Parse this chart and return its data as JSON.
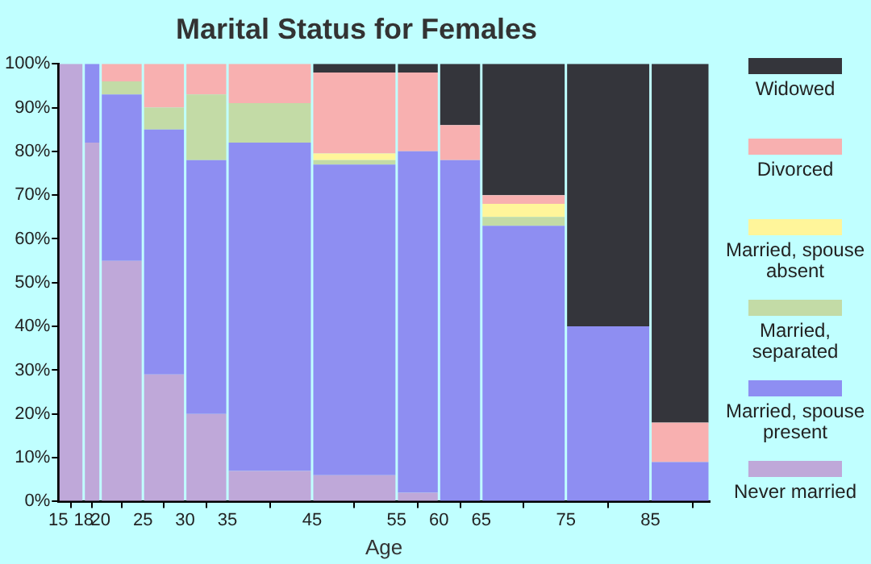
{
  "chart_data": {
    "type": "bar",
    "title": "Marital Status for Females",
    "xlabel": "Age",
    "stacked": true,
    "grid": false,
    "legend": "right",
    "x": [
      16.5,
      19,
      22.5,
      27.5,
      32.5,
      40,
      50,
      57.5,
      62.5,
      70,
      80,
      88.5
    ],
    "xlim": [
      15,
      92
    ],
    "xticks": [
      15,
      18,
      20,
      25,
      30,
      35,
      45,
      55,
      60,
      65,
      75,
      85
    ],
    "ylim": [
      0,
      100
    ],
    "yticks": [
      {
        "value": 0,
        "label": "0%"
      },
      {
        "value": 10,
        "label": "10%"
      },
      {
        "value": 20,
        "label": "20%"
      },
      {
        "value": 30,
        "label": "30%"
      },
      {
        "value": 40,
        "label": "40%"
      },
      {
        "value": 50,
        "label": "50%"
      },
      {
        "value": 60,
        "label": "60%"
      },
      {
        "value": 70,
        "label": "70%"
      },
      {
        "value": 80,
        "label": "80%"
      },
      {
        "value": 90,
        "label": "90%"
      },
      {
        "value": 100,
        "label": "100%"
      }
    ],
    "series": [
      {
        "name": "Never married",
        "color": "#bfa8d9",
        "values": [
          100,
          82,
          55,
          29,
          20,
          7,
          6,
          2,
          0,
          0,
          0,
          0
        ]
      },
      {
        "name": "Married, spouse present",
        "color": "#8e8ef2",
        "values": [
          0,
          18,
          38,
          56,
          58,
          75,
          71,
          78,
          78,
          63,
          40,
          9
        ]
      },
      {
        "name": "Married, separated",
        "color": "#c3dba6",
        "values": [
          0,
          0,
          3,
          5,
          15,
          9,
          1,
          0,
          0,
          2,
          0,
          0
        ]
      },
      {
        "name": "Married, spouse absent",
        "color": "#fff59a",
        "values": [
          0,
          0,
          0,
          0,
          0,
          0,
          1.5,
          0,
          0,
          3,
          0,
          0
        ]
      },
      {
        "name": "Divorced",
        "color": "#f8b0b0",
        "values": [
          0,
          0,
          4,
          10,
          7,
          9,
          18.5,
          18,
          8,
          2,
          0,
          9
        ]
      },
      {
        "name": "Widowed",
        "color": "#34353b",
        "values": [
          0,
          0,
          0,
          0,
          0,
          0,
          2,
          2,
          14,
          30,
          60,
          82
        ]
      }
    ]
  }
}
